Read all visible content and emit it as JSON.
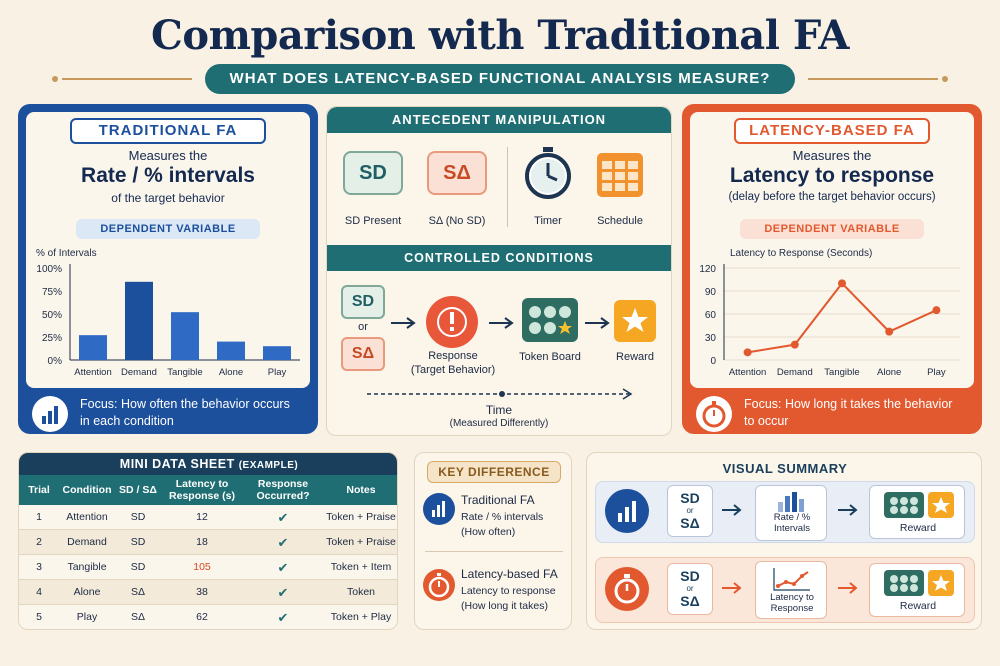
{
  "title": "Comparison with Traditional FA",
  "subtitle": "WHAT DOES LATENCY-BASED FUNCTIONAL ANALYSIS MEASURE?",
  "colors": {
    "navy": "#1c4f9c",
    "orange": "#e2592f",
    "teal": "#1f6e74",
    "cream": "#fbf6ec"
  },
  "traditional": {
    "header": "TRADITIONAL FA",
    "measures": "Measures the",
    "metric": "Rate / % intervals",
    "of": "of the target behavior",
    "dv_label": "DEPENDENT VARIABLE",
    "focus": "Focus: How often the behavior occurs in each condition",
    "focus_icon": "bar-chart-icon"
  },
  "latency": {
    "header": "LATENCY-BASED FA",
    "measures": "Measures the",
    "metric": "Latency to response",
    "of": "(delay before the target behavior occurs)",
    "dv_label": "DEPENDENT VARIABLE",
    "focus": "Focus: How long it takes the behavior to occur",
    "focus_icon": "stopwatch-icon"
  },
  "antecedent": {
    "header": "ANTECEDENT MANIPULATION",
    "items": [
      {
        "symbol": "SD",
        "label": "SD Present",
        "icon": "sd-card-icon"
      },
      {
        "symbol": "SΔ",
        "label": "SΔ (No SD)",
        "icon": "s-delta-card-icon"
      },
      {
        "symbol": "",
        "label": "Timer",
        "icon": "stopwatch-icon"
      },
      {
        "symbol": "",
        "label": "Schedule",
        "icon": "calendar-grid-icon"
      }
    ],
    "controlled_header": "CONTROLLED CONDITIONS",
    "flow": {
      "sd": "SD",
      "or": "or",
      "sdelta": "SΔ",
      "response": "Response\n(Target Behavior)",
      "token": "Token Board",
      "reward": "Reward"
    },
    "time_label": "Time",
    "time_sub": "(Measured Differently)"
  },
  "chart_data": [
    {
      "type": "bar",
      "title": "",
      "ylabel": "% of Intervals",
      "categories": [
        "Attention",
        "Demand",
        "Tangible",
        "Alone",
        "Play"
      ],
      "values": [
        27,
        85,
        52,
        20,
        15
      ],
      "yticks": [
        "0%",
        "25%",
        "50%",
        "75%",
        "100%"
      ],
      "ylim": [
        0,
        100
      ],
      "grid": false
    },
    {
      "type": "line",
      "title": "",
      "ylabel": "Latency to Response (Seconds)",
      "categories": [
        "Attention",
        "Demand",
        "Tangible",
        "Alone",
        "Play"
      ],
      "values": [
        10,
        20,
        100,
        37,
        65
      ],
      "yticks": [
        "0",
        "30",
        "60",
        "90",
        "120"
      ],
      "ylim": [
        0,
        120
      ],
      "grid": true
    }
  ],
  "datasheet": {
    "title": "MINI DATA SHEET",
    "title_suffix": "(EXAMPLE)",
    "headers": [
      "Trial",
      "Condition",
      "SD / SΔ",
      "Latency to Response (s)",
      "Response Occurred?",
      "Notes"
    ],
    "rows": [
      [
        "1",
        "Attention",
        "SD",
        "12",
        "✔",
        "Token + Praise"
      ],
      [
        "2",
        "Demand",
        "SD",
        "18",
        "✔",
        "Token + Praise"
      ],
      [
        "3",
        "Tangible",
        "SD",
        "105",
        "✔",
        "Token + Item"
      ],
      [
        "4",
        "Alone",
        "SΔ",
        "38",
        "✔",
        "Token"
      ],
      [
        "5",
        "Play",
        "SΔ",
        "62",
        "✔",
        "Token + Play"
      ]
    ]
  },
  "key_difference": {
    "header": "KEY DIFFERENCE",
    "trad_title": "Traditional FA",
    "trad_l1": "Rate / % intervals",
    "trad_l2": "(How often)",
    "lat_title": "Latency-based FA",
    "lat_l1": "Latency to response",
    "lat_l2": "(How long it takes)"
  },
  "visual_summary": {
    "header": "VISUAL SUMMARY",
    "sd": "SD",
    "or": "or",
    "sdelta": "SΔ",
    "row1_box": "Rate / % Intervals",
    "row2_box": "Latency to Response",
    "reward": "Reward"
  }
}
